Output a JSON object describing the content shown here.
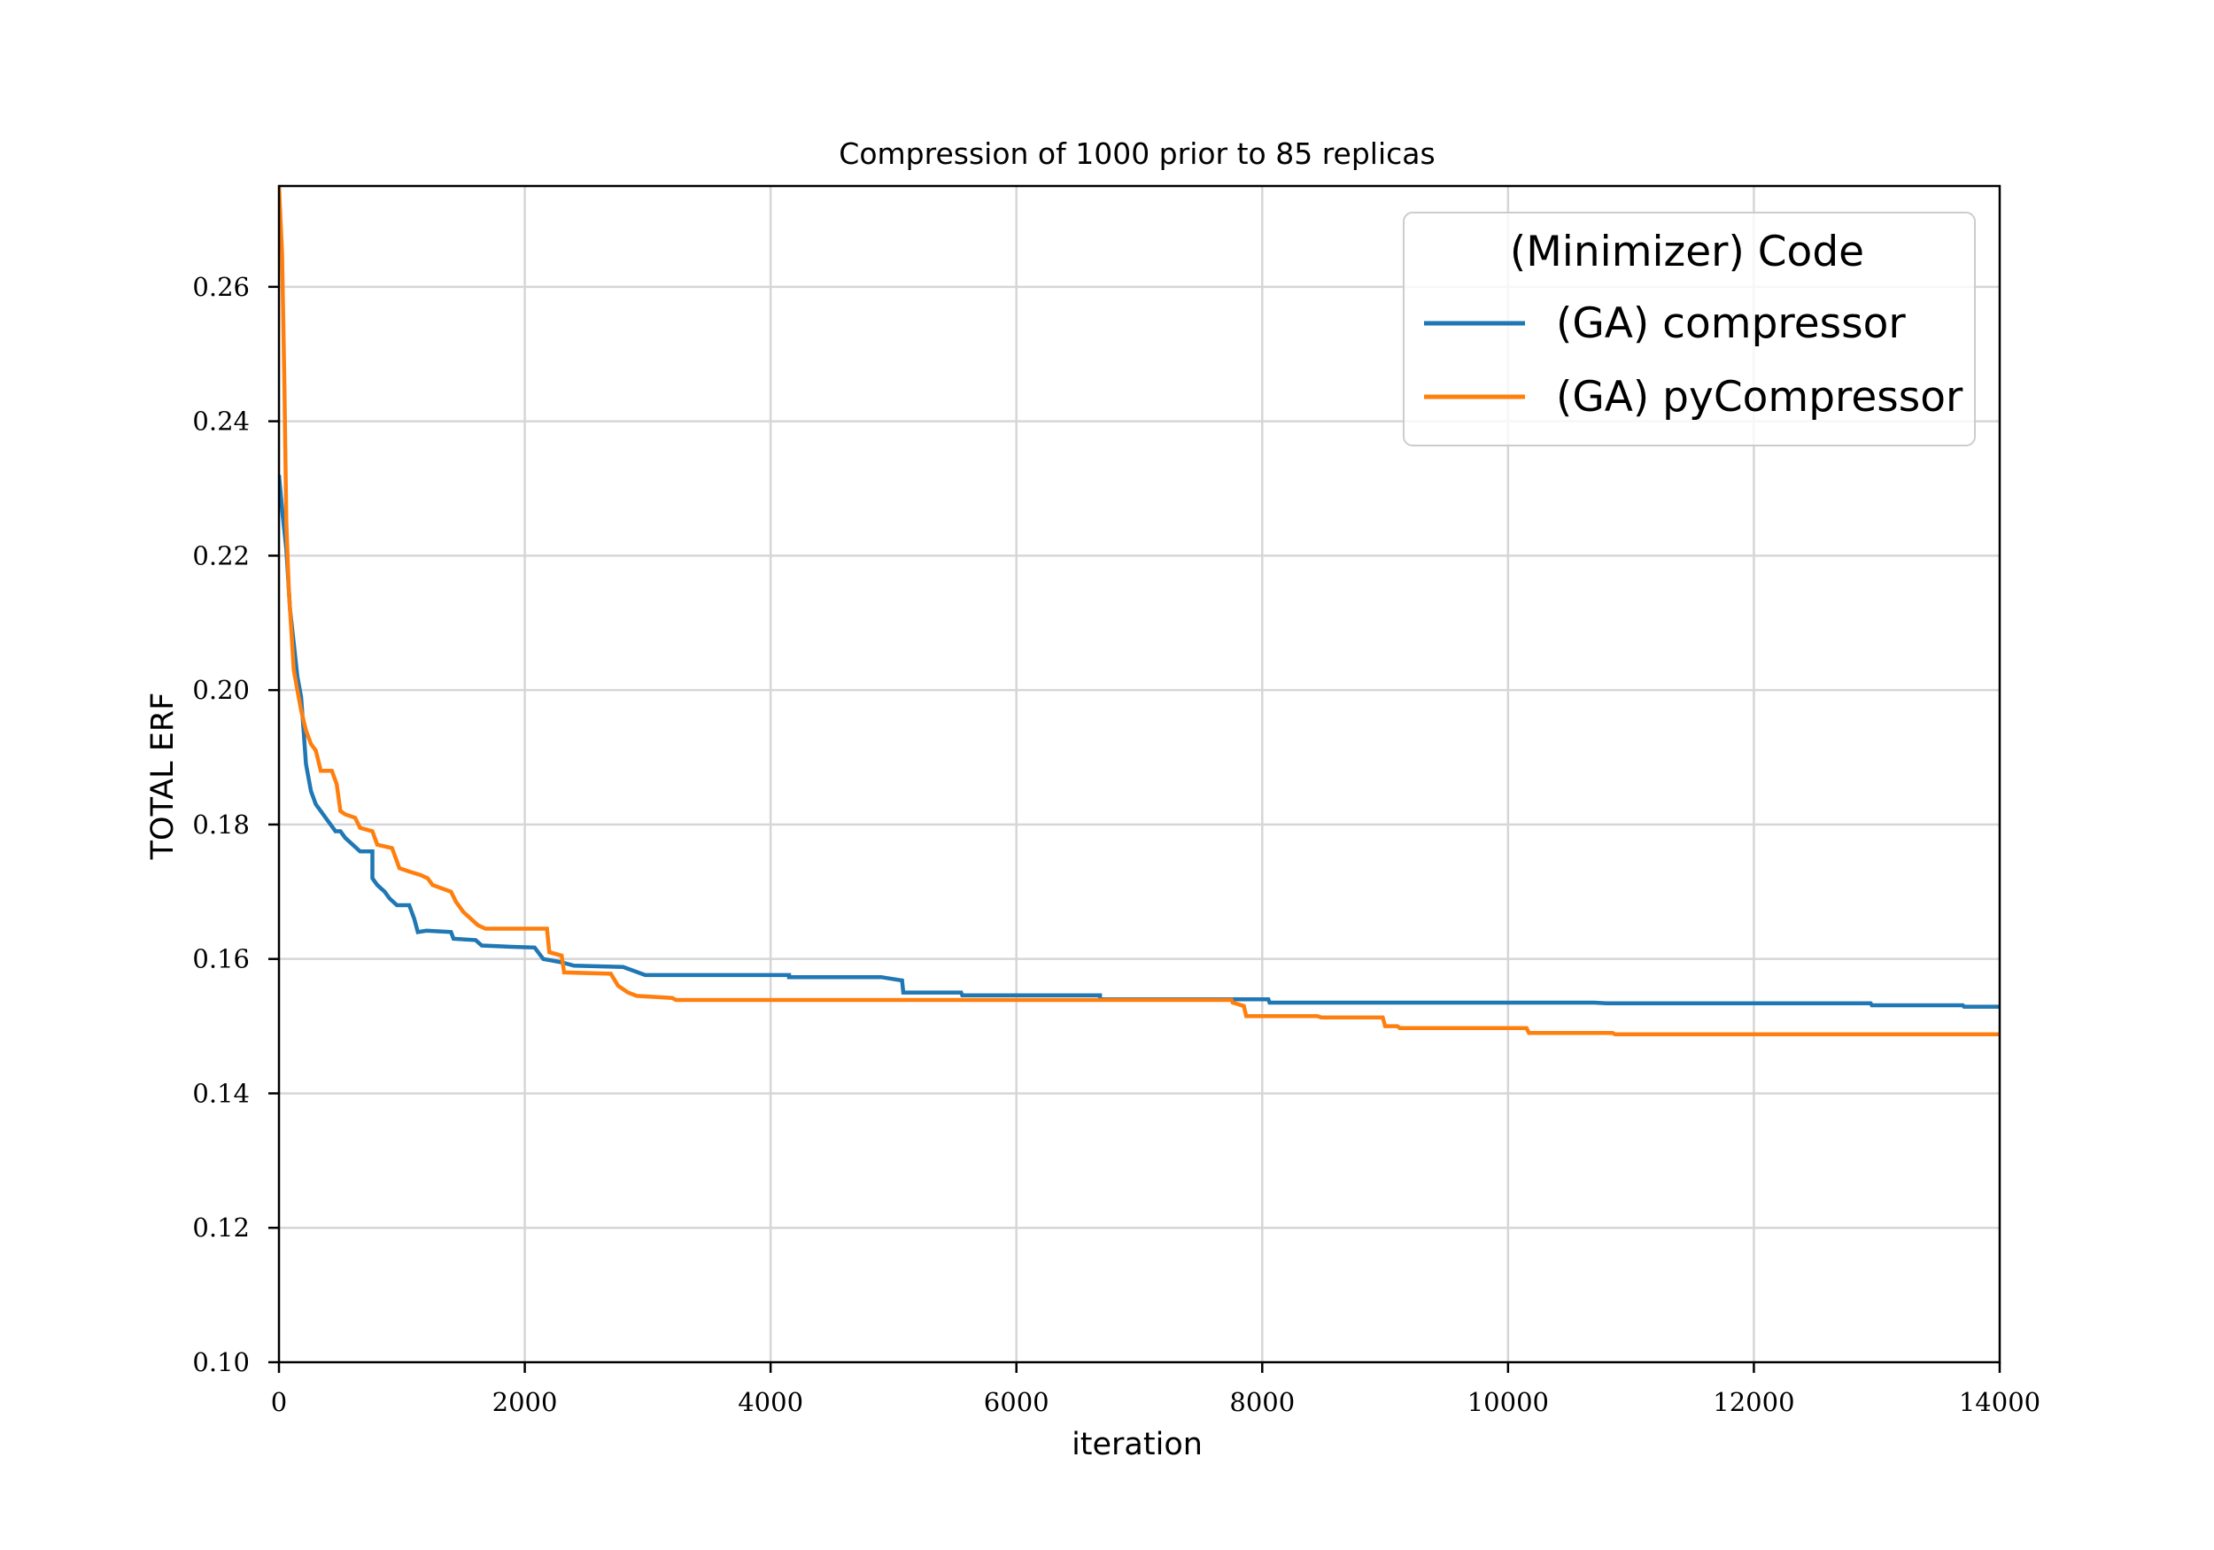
{
  "chart_data": {
    "type": "line",
    "title": "Compression of 1000 prior to 85 replicas",
    "xlabel": "iteration",
    "ylabel": "TOTAL ERF",
    "xlim": [
      0,
      14000
    ],
    "ylim": [
      0.1,
      0.275
    ],
    "xticks": [
      0,
      2000,
      4000,
      6000,
      8000,
      10000,
      12000,
      14000
    ],
    "yticks": [
      0.1,
      0.12,
      0.14,
      0.16,
      0.18,
      0.2,
      0.22,
      0.24,
      0.26
    ],
    "grid": true,
    "legend": {
      "title": "(Minimizer) Code",
      "position": "top-right"
    },
    "series": [
      {
        "name": "(GA) compressor",
        "color": "#1f77b4",
        "points": [
          [
            0,
            0.232
          ],
          [
            30,
            0.226
          ],
          [
            60,
            0.221
          ],
          [
            90,
            0.212
          ],
          [
            120,
            0.207
          ],
          [
            150,
            0.202
          ],
          [
            180,
            0.199
          ],
          [
            200,
            0.194
          ],
          [
            220,
            0.189
          ],
          [
            260,
            0.185
          ],
          [
            300,
            0.183
          ],
          [
            340,
            0.182
          ],
          [
            380,
            0.181
          ],
          [
            420,
            0.18
          ],
          [
            460,
            0.179
          ],
          [
            500,
            0.179
          ],
          [
            540,
            0.178
          ],
          [
            600,
            0.177
          ],
          [
            660,
            0.176
          ],
          [
            760,
            0.176
          ],
          [
            760,
            0.172
          ],
          [
            800,
            0.171
          ],
          [
            860,
            0.17
          ],
          [
            900,
            0.169
          ],
          [
            960,
            0.168
          ],
          [
            1060,
            0.168
          ],
          [
            1100,
            0.166
          ],
          [
            1130,
            0.164
          ],
          [
            1200,
            0.1642
          ],
          [
            1400,
            0.164
          ],
          [
            1420,
            0.163
          ],
          [
            1600,
            0.1628
          ],
          [
            1650,
            0.162
          ],
          [
            1900,
            0.1618
          ],
          [
            2080,
            0.1617
          ],
          [
            2150,
            0.16
          ],
          [
            2300,
            0.1595
          ],
          [
            2400,
            0.159
          ],
          [
            2800,
            0.1588
          ],
          [
            2980,
            0.1576
          ],
          [
            4150,
            0.1576
          ],
          [
            4150,
            0.1573
          ],
          [
            4900,
            0.1573
          ],
          [
            5070,
            0.1568
          ],
          [
            5080,
            0.155
          ],
          [
            5550,
            0.155
          ],
          [
            5560,
            0.1546
          ],
          [
            6680,
            0.1546
          ],
          [
            6680,
            0.154
          ],
          [
            8050,
            0.154
          ],
          [
            8060,
            0.1535
          ],
          [
            10700,
            0.1535
          ],
          [
            10800,
            0.1534
          ],
          [
            12950,
            0.1534
          ],
          [
            12960,
            0.1531
          ],
          [
            13700,
            0.1531
          ],
          [
            13710,
            0.1529
          ],
          [
            14000,
            0.1529
          ]
        ]
      },
      {
        "name": "(GA) pyCompressor",
        "color": "#ff7f0e",
        "points": [
          [
            0,
            0.275
          ],
          [
            25,
            0.265
          ],
          [
            45,
            0.245
          ],
          [
            60,
            0.225
          ],
          [
            80,
            0.215
          ],
          [
            100,
            0.209
          ],
          [
            120,
            0.203
          ],
          [
            150,
            0.2
          ],
          [
            180,
            0.197
          ],
          [
            220,
            0.194
          ],
          [
            260,
            0.192
          ],
          [
            300,
            0.191
          ],
          [
            340,
            0.188
          ],
          [
            430,
            0.188
          ],
          [
            470,
            0.186
          ],
          [
            500,
            0.182
          ],
          [
            540,
            0.1815
          ],
          [
            620,
            0.181
          ],
          [
            660,
            0.1795
          ],
          [
            760,
            0.179
          ],
          [
            800,
            0.177
          ],
          [
            920,
            0.1765
          ],
          [
            980,
            0.1735
          ],
          [
            1060,
            0.173
          ],
          [
            1150,
            0.1725
          ],
          [
            1210,
            0.172
          ],
          [
            1250,
            0.171
          ],
          [
            1400,
            0.17
          ],
          [
            1440,
            0.1685
          ],
          [
            1500,
            0.167
          ],
          [
            1560,
            0.166
          ],
          [
            1620,
            0.165
          ],
          [
            1680,
            0.1645
          ],
          [
            2180,
            0.1645
          ],
          [
            2200,
            0.161
          ],
          [
            2300,
            0.1605
          ],
          [
            2320,
            0.158
          ],
          [
            2700,
            0.1578
          ],
          [
            2760,
            0.156
          ],
          [
            2840,
            0.155
          ],
          [
            2910,
            0.1545
          ],
          [
            3200,
            0.1542
          ],
          [
            3230,
            0.1539
          ],
          [
            7750,
            0.1539
          ],
          [
            7760,
            0.1535
          ],
          [
            7850,
            0.153
          ],
          [
            7870,
            0.1515
          ],
          [
            8450,
            0.1515
          ],
          [
            8480,
            0.1513
          ],
          [
            8980,
            0.1513
          ],
          [
            9000,
            0.15
          ],
          [
            9100,
            0.15
          ],
          [
            9120,
            0.1497
          ],
          [
            10150,
            0.1497
          ],
          [
            10170,
            0.149
          ],
          [
            10850,
            0.149
          ],
          [
            10870,
            0.1488
          ],
          [
            14000,
            0.1488
          ]
        ]
      }
    ]
  }
}
